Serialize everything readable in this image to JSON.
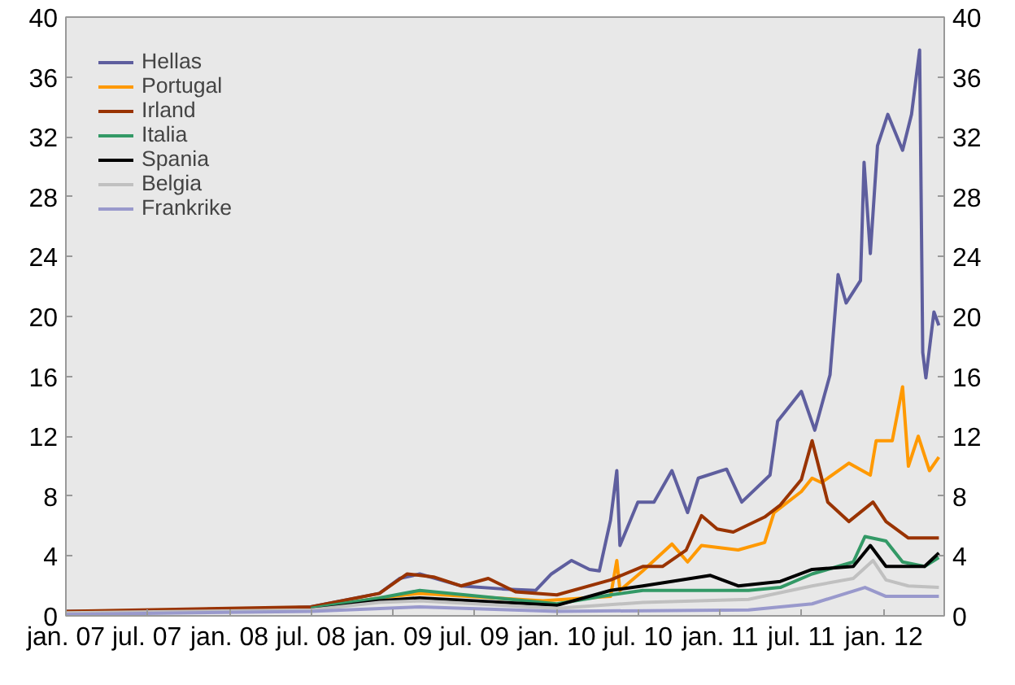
{
  "chart_data": {
    "type": "line",
    "xlim": [
      "2007-01-01",
      "2012-05-15"
    ],
    "xticks": [
      {
        "value": "2007-01-01",
        "label": "jan. 07"
      },
      {
        "value": "2007-07-01",
        "label": "jul. 07"
      },
      {
        "value": "2008-01-01",
        "label": "jan. 08"
      },
      {
        "value": "2008-07-01",
        "label": "jul. 08"
      },
      {
        "value": "2009-01-01",
        "label": "jan. 09"
      },
      {
        "value": "2009-07-01",
        "label": "jul. 09"
      },
      {
        "value": "2010-01-01",
        "label": "jan. 10"
      },
      {
        "value": "2010-07-01",
        "label": "jul. 10"
      },
      {
        "value": "2011-01-01",
        "label": "jan. 11"
      },
      {
        "value": "2011-07-01",
        "label": "jul. 11"
      },
      {
        "value": "2012-01-01",
        "label": "jan. 12"
      }
    ],
    "ylim": [
      0,
      40
    ],
    "yticks": [
      0,
      4,
      8,
      12,
      16,
      20,
      24,
      28,
      32,
      36,
      40
    ],
    "y2lim": [
      0,
      40
    ],
    "y2ticks": [
      0,
      4,
      8,
      12,
      16,
      20,
      24,
      28,
      32,
      36,
      40
    ],
    "grid": false,
    "legend": "top left",
    "series": [
      {
        "name": "Hellas",
        "color": "#5e5e9e",
        "x": [
          "2007-01-01",
          "2008-01-01",
          "2008-07-01",
          "2008-12-01",
          "2009-01-15",
          "2009-03-01",
          "2009-06-01",
          "2009-09-01",
          "2009-11-15",
          "2009-12-20",
          "2010-02-03",
          "2010-03-15",
          "2010-04-06",
          "2010-05-01",
          "2010-05-15",
          "2010-05-22",
          "2010-07-01",
          "2010-08-06",
          "2010-09-15",
          "2010-10-20",
          "2010-11-13",
          "2011-01-15",
          "2011-02-18",
          "2011-04-22",
          "2011-05-09",
          "2011-07-01",
          "2011-07-31",
          "2011-09-03",
          "2011-09-21",
          "2011-10-09",
          "2011-11-10",
          "2011-11-18",
          "2011-12-02",
          "2011-12-18",
          "2012-01-10",
          "2012-02-12",
          "2012-03-03",
          "2012-03-21",
          "2012-03-28",
          "2012-04-04",
          "2012-04-22",
          "2012-05-03"
        ],
        "values": [
          0.3,
          0.3,
          0.6,
          1.5,
          2.5,
          2.8,
          2.0,
          1.8,
          1.7,
          2.8,
          3.7,
          3.1,
          3.0,
          6.4,
          9.7,
          4.7,
          7.6,
          7.6,
          9.7,
          6.9,
          9.2,
          9.8,
          7.6,
          9.4,
          13,
          15,
          12.4,
          16.1,
          22.8,
          20.9,
          22.4,
          30.3,
          24.2,
          31.4,
          33.5,
          31.1,
          33.5,
          37.8,
          17.6,
          15.9,
          20.3,
          19.4
        ]
      },
      {
        "name": "Portugal",
        "color": "#ff9900",
        "x": [
          "2007-01-01",
          "2008-07-01",
          "2008-12-01",
          "2009-03-01",
          "2009-12-01",
          "2010-05-01",
          "2010-05-15",
          "2010-05-22",
          "2010-07-12",
          "2010-09-15",
          "2010-10-20",
          "2010-11-20",
          "2011-02-10",
          "2011-04-10",
          "2011-05-01",
          "2011-07-01",
          "2011-07-25",
          "2011-08-15",
          "2011-10-15",
          "2011-12-02",
          "2011-12-15",
          "2012-01-20",
          "2012-02-12",
          "2012-02-25",
          "2012-03-18",
          "2012-04-12",
          "2012-05-03"
        ],
        "values": [
          0.2,
          0.5,
          1.2,
          1.5,
          1.0,
          1.3,
          3.7,
          1.7,
          3.0,
          4.8,
          3.6,
          4.7,
          4.4,
          4.9,
          6.9,
          8.3,
          9.2,
          8.9,
          10.2,
          9.4,
          11.7,
          11.7,
          15.3,
          10,
          12,
          9.7,
          10.6
        ]
      },
      {
        "name": "Irland",
        "color": "#993300",
        "x": [
          "2007-01-01",
          "2008-07-01",
          "2008-12-01",
          "2009-02-01",
          "2009-04-01",
          "2009-06-01",
          "2009-08-01",
          "2009-10-01",
          "2010-01-01",
          "2010-05-01",
          "2010-07-12",
          "2010-08-25",
          "2010-10-17",
          "2010-11-20",
          "2010-12-25",
          "2011-01-30",
          "2011-04-10",
          "2011-05-15",
          "2011-07-01",
          "2011-07-25",
          "2011-08-29",
          "2011-10-15",
          "2011-12-08",
          "2012-01-06",
          "2012-02-25",
          "2012-05-03"
        ],
        "values": [
          0.3,
          0.6,
          1.5,
          2.8,
          2.6,
          2.0,
          2.5,
          1.6,
          1.4,
          2.4,
          3.3,
          3.3,
          4.4,
          6.7,
          5.8,
          5.6,
          6.6,
          7.4,
          9.1,
          11.7,
          7.6,
          6.3,
          7.6,
          6.3,
          5.2,
          5.2
        ]
      },
      {
        "name": "Italia",
        "color": "#339966",
        "x": [
          "2008-07-01",
          "2008-12-01",
          "2009-03-01",
          "2010-01-01",
          "2010-05-01",
          "2010-07-12",
          "2010-11-06",
          "2011-03-05",
          "2011-05-15",
          "2011-07-25",
          "2011-10-25",
          "2011-11-20",
          "2012-01-06",
          "2012-02-12",
          "2012-04-01",
          "2012-05-03"
        ],
        "values": [
          0.5,
          1.2,
          1.7,
          0.8,
          1.4,
          1.7,
          1.7,
          1.7,
          1.9,
          2.8,
          3.6,
          5.3,
          5,
          3.6,
          3.3,
          3.9
        ]
      },
      {
        "name": "Spania",
        "color": "#000000",
        "x": [
          "2008-07-01",
          "2008-12-01",
          "2009-03-01",
          "2010-01-01",
          "2010-05-01",
          "2010-07-12",
          "2010-12-10",
          "2011-02-10",
          "2011-05-15",
          "2011-07-25",
          "2011-10-25",
          "2011-12-02",
          "2012-01-06",
          "2012-04-01",
          "2012-05-03"
        ],
        "values": [
          0.4,
          1.0,
          1.2,
          0.7,
          1.7,
          2.0,
          2.7,
          2.0,
          2.3,
          3.1,
          3.3,
          4.7,
          3.3,
          3.3,
          4.2
        ]
      },
      {
        "name": "Belgia",
        "color": "#c0c0c0",
        "x": [
          "2007-01-01",
          "2008-07-01",
          "2008-12-01",
          "2009-03-01",
          "2010-01-01",
          "2010-07-12",
          "2011-03-05",
          "2011-07-25",
          "2011-10-25",
          "2011-12-08",
          "2012-01-06",
          "2012-02-25",
          "2012-05-03"
        ],
        "values": [
          0.2,
          0.4,
          0.9,
          1.0,
          0.5,
          0.9,
          1.1,
          2.0,
          2.5,
          3.7,
          2.4,
          2.0,
          1.9
        ]
      },
      {
        "name": "Frankrike",
        "color": "#9999cc",
        "x": [
          "2007-01-01",
          "2008-07-01",
          "2009-03-01",
          "2010-01-01",
          "2011-03-05",
          "2011-07-25",
          "2011-11-20",
          "2012-01-06",
          "2012-05-03"
        ],
        "values": [
          0.1,
          0.3,
          0.6,
          0.3,
          0.4,
          0.8,
          1.9,
          1.3,
          1.3
        ]
      }
    ]
  }
}
